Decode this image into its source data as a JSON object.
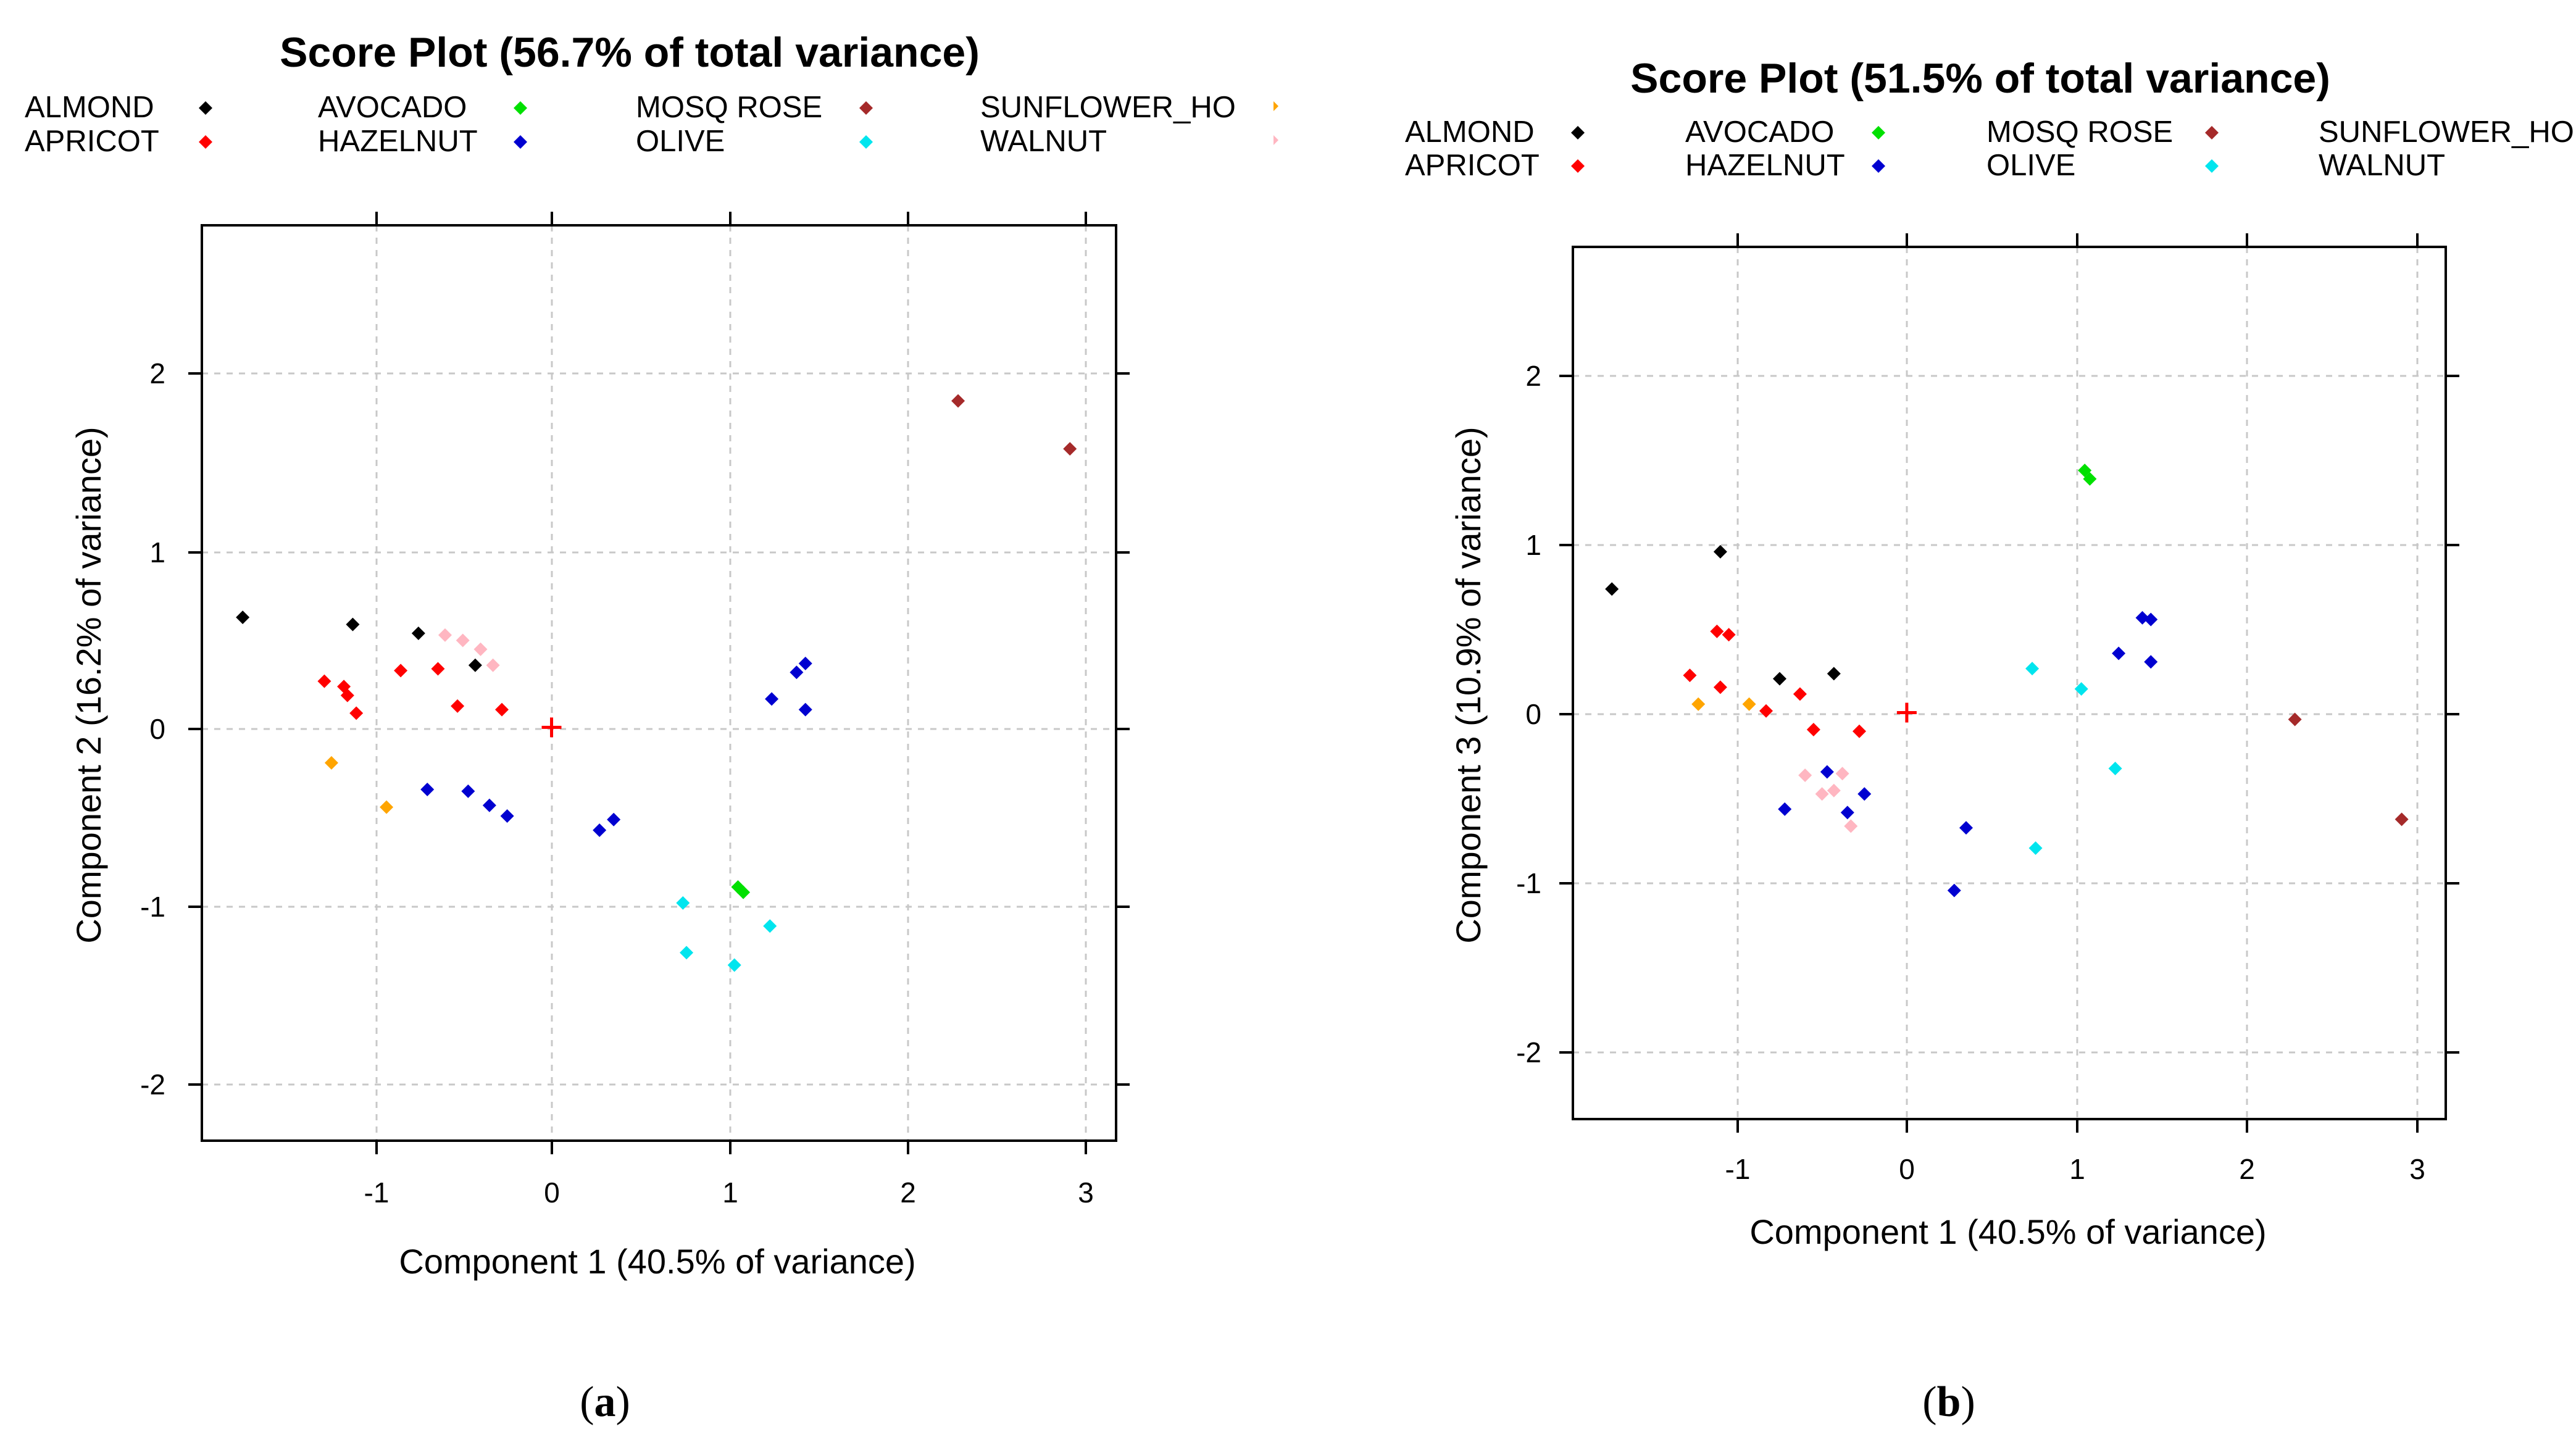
{
  "figure": {
    "panels": [
      {
        "caption_open": "(",
        "caption_letter": "a",
        "caption_close": ")"
      },
      {
        "caption_open": "(",
        "caption_letter": "b",
        "caption_close": ")"
      }
    ]
  },
  "groups": [
    {
      "name": "ALMOND",
      "color": "#000000"
    },
    {
      "name": "APRICOT",
      "color": "#ff0000"
    },
    {
      "name": "AVOCADO",
      "color": "#00e000"
    },
    {
      "name": "HAZELNUT",
      "color": "#0000d0"
    },
    {
      "name": "MOSQ ROSE",
      "color": "#a52a2a"
    },
    {
      "name": "OLIVE",
      "color": "#00e5ee"
    },
    {
      "name": "SUNFLOWER_HO",
      "color": "#ffa500"
    },
    {
      "name": "WALNUT",
      "color": "#ffb6c1"
    }
  ],
  "centroid_color": "#ff0000",
  "chart_data": [
    {
      "type": "scatter",
      "title": "Score Plot (56.7% of total variance)",
      "xlabel": "Component 1 (40.5% of variance)",
      "ylabel": "Component 2 (16.2% of variance)",
      "xlim": [
        -1.97,
        3.18
      ],
      "ylim": [
        -2.33,
        2.83
      ],
      "xticks": [
        -1,
        0,
        1,
        2,
        3
      ],
      "yticks": [
        -2,
        -1,
        0,
        1,
        2
      ],
      "xtick_labels": [
        "-1",
        "0",
        "1",
        "2",
        "3"
      ],
      "ytick_labels": [
        "-2",
        "-1",
        "0",
        "1",
        "2"
      ],
      "grid": true,
      "legend_position": "top",
      "centroid": [
        0,
        0
      ],
      "series": [
        {
          "name": "ALMOND",
          "color": "#000000",
          "points": [
            [
              -1.74,
              0.62
            ],
            [
              -1.12,
              0.58
            ],
            [
              -0.75,
              0.53
            ],
            [
              -0.43,
              0.35
            ]
          ]
        },
        {
          "name": "APRICOT",
          "color": "#ff0000",
          "points": [
            [
              -1.28,
              0.26
            ],
            [
              -1.17,
              0.23
            ],
            [
              -1.15,
              0.18
            ],
            [
              -1.1,
              0.08
            ],
            [
              -0.85,
              0.32
            ],
            [
              -0.64,
              0.33
            ],
            [
              -0.53,
              0.12
            ],
            [
              -0.28,
              0.1
            ]
          ]
        },
        {
          "name": "AVOCADO",
          "color": "#00e000",
          "points": [
            [
              1.05,
              -0.9
            ],
            [
              1.08,
              -0.93
            ]
          ]
        },
        {
          "name": "HAZELNUT",
          "color": "#0000d0",
          "points": [
            [
              -0.7,
              -0.35
            ],
            [
              -0.47,
              -0.36
            ],
            [
              -0.35,
              -0.44
            ],
            [
              -0.25,
              -0.5
            ],
            [
              0.27,
              -0.58
            ],
            [
              0.35,
              -0.52
            ],
            [
              1.24,
              0.16
            ],
            [
              1.38,
              0.31
            ],
            [
              1.43,
              0.36
            ],
            [
              1.43,
              0.1
            ]
          ]
        },
        {
          "name": "MOSQ ROSE",
          "color": "#a52a2a",
          "points": [
            [
              2.29,
              1.84
            ],
            [
              2.92,
              1.57
            ]
          ]
        },
        {
          "name": "OLIVE",
          "color": "#00e5ee",
          "points": [
            [
              0.74,
              -0.99
            ],
            [
              0.76,
              -1.27
            ],
            [
              1.03,
              -1.34
            ],
            [
              1.23,
              -1.12
            ]
          ]
        },
        {
          "name": "SUNFLOWER_HO",
          "color": "#ffa500",
          "points": [
            [
              -1.24,
              -0.2
            ],
            [
              -0.93,
              -0.45
            ]
          ]
        },
        {
          "name": "WALNUT",
          "color": "#ffb6c1",
          "points": [
            [
              -0.6,
              0.52
            ],
            [
              -0.5,
              0.49
            ],
            [
              -0.4,
              0.44
            ],
            [
              -0.33,
              0.35
            ]
          ]
        }
      ]
    },
    {
      "type": "scatter",
      "title": "Score Plot (51.5% of total variance)",
      "xlabel": "Component 1 (40.5% of variance)",
      "ylabel": "Component 3 (10.9% of variance)",
      "xlim": [
        -1.97,
        3.18
      ],
      "ylim": [
        -2.4,
        2.75
      ],
      "xticks": [
        -1,
        0,
        1,
        2,
        3
      ],
      "yticks": [
        -2,
        -1,
        0,
        1,
        2
      ],
      "xtick_labels": [
        "-1",
        "0",
        "1",
        "2",
        "3"
      ],
      "ytick_labels": [
        "-2",
        "-1",
        "0",
        "1",
        "2"
      ],
      "grid": true,
      "legend_position": "top",
      "centroid": [
        0,
        0
      ],
      "series": [
        {
          "name": "ALMOND",
          "color": "#000000",
          "points": [
            [
              -1.74,
              0.73
            ],
            [
              -1.1,
              0.95
            ],
            [
              -0.75,
              0.2
            ],
            [
              -0.43,
              0.23
            ]
          ]
        },
        {
          "name": "APRICOT",
          "color": "#ff0000",
          "points": [
            [
              -1.28,
              0.22
            ],
            [
              -1.12,
              0.48
            ],
            [
              -1.05,
              0.46
            ],
            [
              -1.1,
              0.15
            ],
            [
              -0.83,
              0.01
            ],
            [
              -0.63,
              0.11
            ],
            [
              -0.55,
              -0.1
            ],
            [
              -0.28,
              -0.11
            ]
          ]
        },
        {
          "name": "AVOCADO",
          "color": "#00e000",
          "points": [
            [
              1.05,
              1.43
            ],
            [
              1.08,
              1.38
            ]
          ]
        },
        {
          "name": "HAZELNUT",
          "color": "#0000d0",
          "points": [
            [
              -0.72,
              -0.57
            ],
            [
              -0.47,
              -0.35
            ],
            [
              -0.35,
              -0.59
            ],
            [
              -0.25,
              -0.48
            ],
            [
              0.28,
              -1.05
            ],
            [
              0.35,
              -0.68
            ],
            [
              1.25,
              0.35
            ],
            [
              1.39,
              0.56
            ],
            [
              1.44,
              0.55
            ],
            [
              1.44,
              0.3
            ]
          ]
        },
        {
          "name": "MOSQ ROSE",
          "color": "#a52a2a",
          "points": [
            [
              2.29,
              -0.04
            ],
            [
              2.92,
              -0.63
            ]
          ]
        },
        {
          "name": "OLIVE",
          "color": "#00e5ee",
          "points": [
            [
              0.74,
              0.26
            ],
            [
              0.76,
              -0.8
            ],
            [
              1.03,
              0.14
            ],
            [
              1.23,
              -0.33
            ]
          ]
        },
        {
          "name": "SUNFLOWER_HO",
          "color": "#ffa500",
          "points": [
            [
              -1.23,
              0.05
            ],
            [
              -0.93,
              0.05
            ]
          ]
        },
        {
          "name": "WALNUT",
          "color": "#ffb6c1",
          "points": [
            [
              -0.6,
              -0.37
            ],
            [
              -0.5,
              -0.48
            ],
            [
              -0.43,
              -0.46
            ],
            [
              -0.38,
              -0.36
            ],
            [
              -0.33,
              -0.67
            ]
          ]
        }
      ]
    }
  ]
}
